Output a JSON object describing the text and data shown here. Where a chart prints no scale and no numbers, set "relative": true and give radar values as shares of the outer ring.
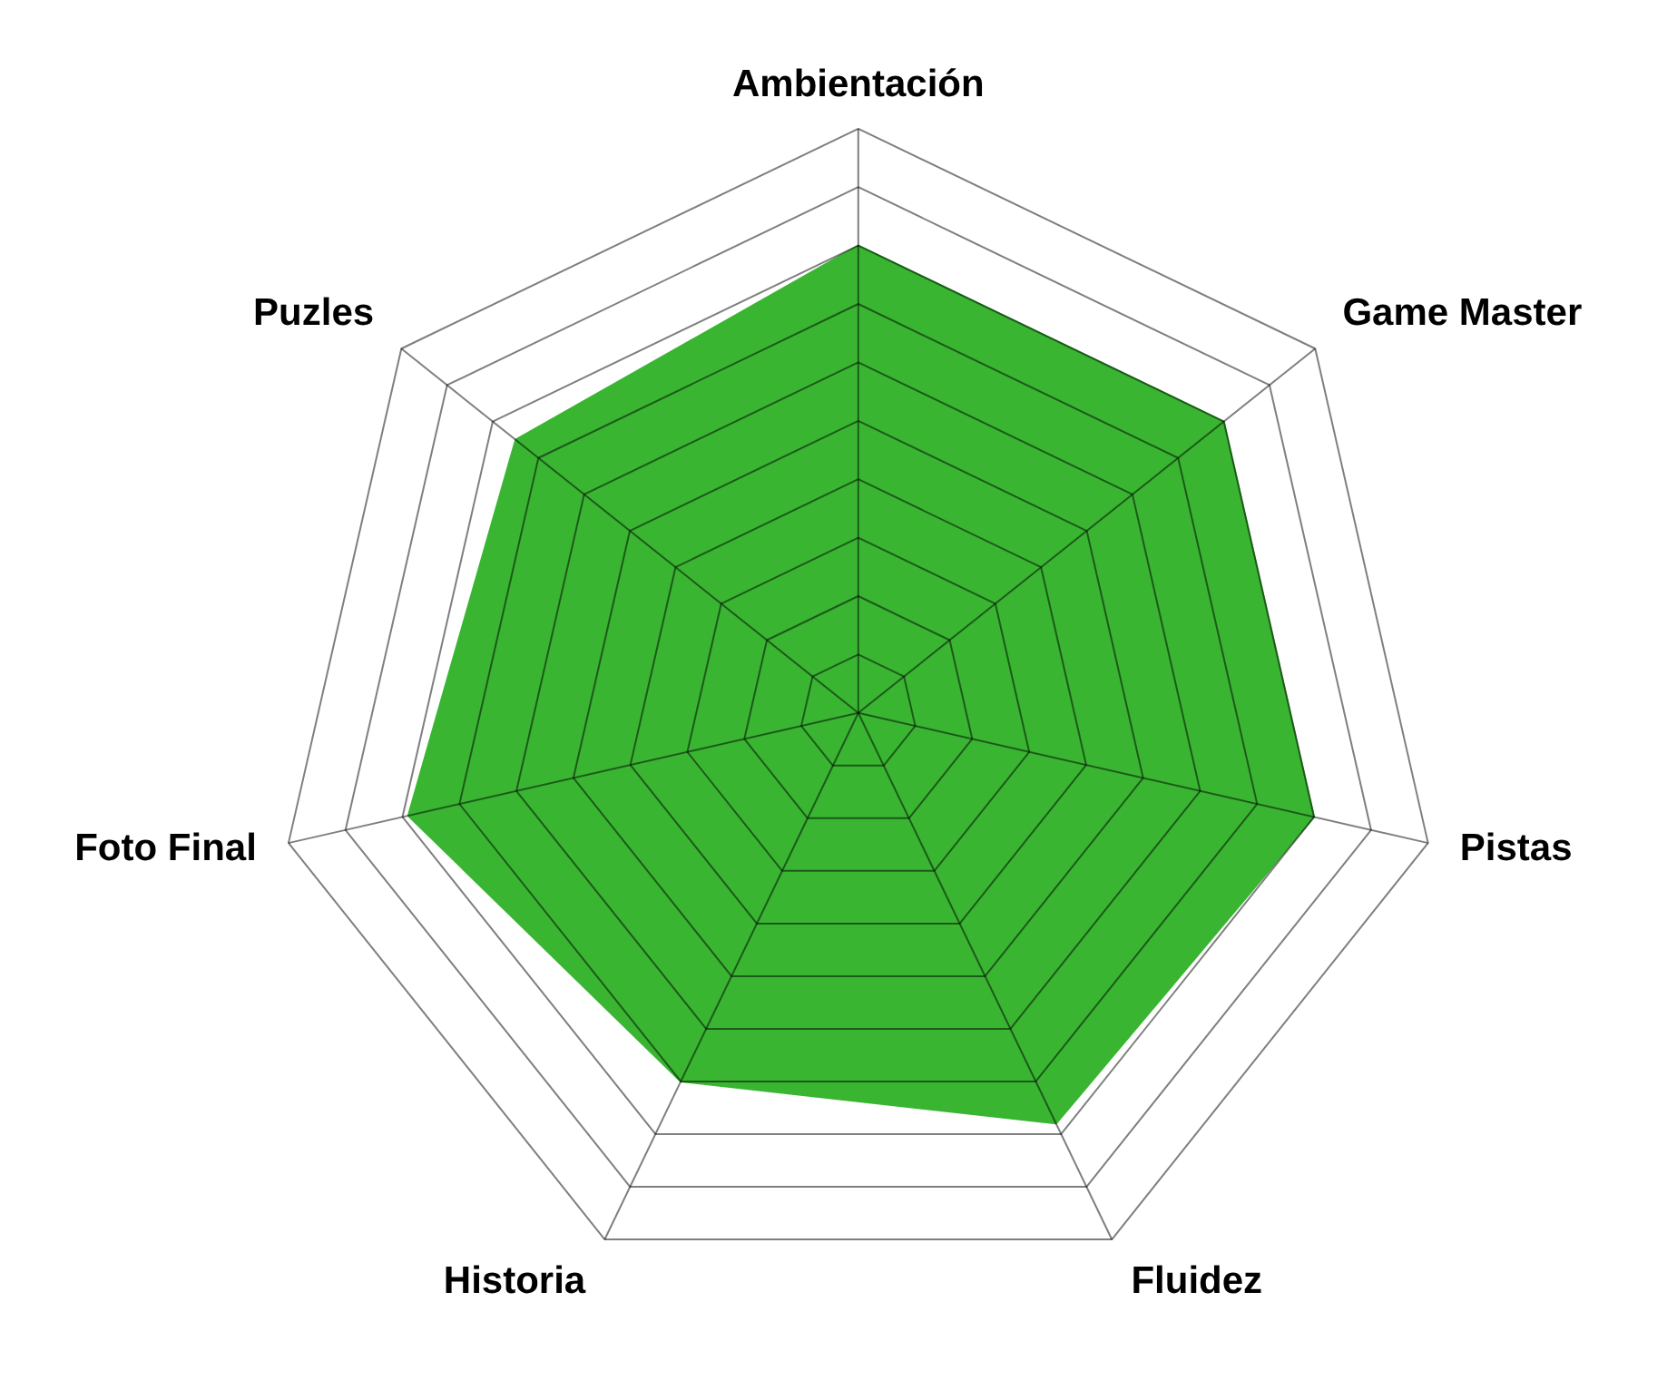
{
  "chart_data": {
    "type": "radar",
    "categories": [
      "Ambientación",
      "Game Master",
      "Pistas",
      "Fluidez",
      "Historia",
      "Foto Final",
      "Puzles"
    ],
    "relative": true,
    "grid": true,
    "series": [
      {
        "color": "#39b532",
        "values": [
          0.8,
          0.8,
          0.8,
          0.78,
          0.7,
          0.79,
          0.75
        ]
      }
    ]
  }
}
